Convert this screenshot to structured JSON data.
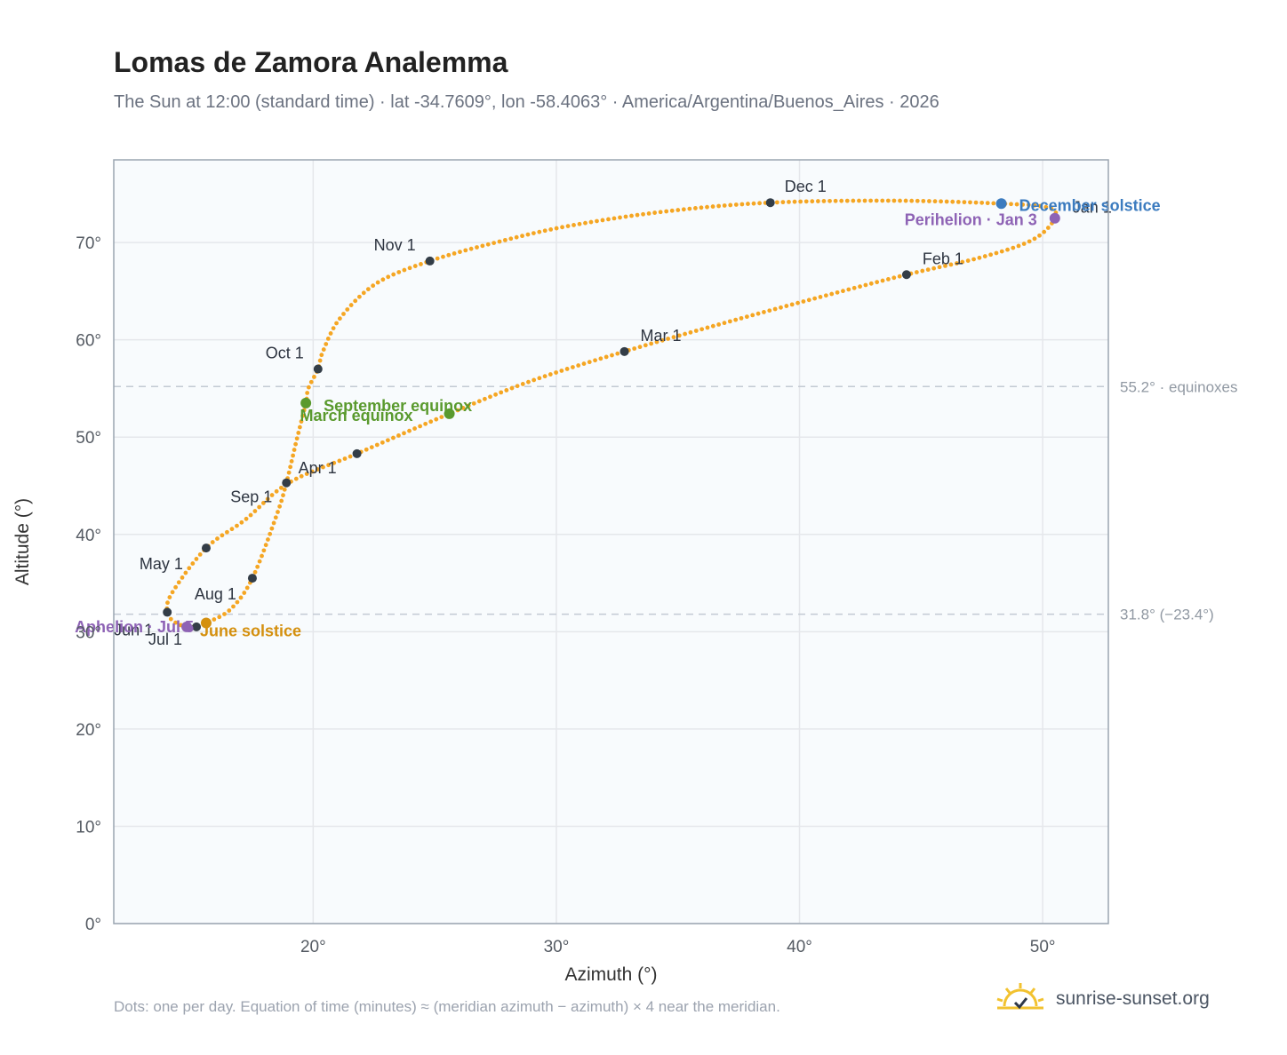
{
  "header": {
    "title": "Lomas de Zamora Analemma",
    "subtitle": "The Sun at 12:00 (standard time) · lat -34.7609°, lon -58.4063° · America/Argentina/Buenos_Aires · 2026"
  },
  "footer": {
    "note": "Dots: one per day. Equation of time (minutes) ≈ (meridian azimuth − azimuth) × 4 near the meridian.",
    "brand": "sunrise-sunset.org"
  },
  "colors": {
    "curve": "#f5a623",
    "month_dot": "#333d47",
    "equinox": "#5a9a2e",
    "june_solstice": "#d4900f",
    "december_solstice": "#3b7bbf",
    "apsis": "#8e63b5",
    "grid": "#e5e7eb",
    "frame": "#9aa5b1",
    "plot_bg": "#f8fbfd",
    "reference": "#c3cad3",
    "logo": "#f2c230"
  },
  "chart_data": {
    "type": "scatter",
    "xlabel": "Azimuth (°)",
    "ylabel": "Altitude (°)",
    "xlim": [
      11.8,
      52.7
    ],
    "ylim": [
      0,
      78.5
    ],
    "xticks": [
      20,
      30,
      40,
      50
    ],
    "yticks": [
      0,
      10,
      20,
      30,
      40,
      50,
      60,
      70
    ],
    "xtick_labels": [
      "20°",
      "30°",
      "40°",
      "50°"
    ],
    "ytick_labels": [
      "0°",
      "10°",
      "20°",
      "30°",
      "40°",
      "50°",
      "60°",
      "70°"
    ],
    "grid": true,
    "reference_lines": [
      {
        "y": 55.2,
        "label": "55.2° · equinoxes"
      },
      {
        "y": 31.8,
        "label": "31.8° (−23.4°)"
      }
    ],
    "months": [
      {
        "label": "Jan 1",
        "x": 50.5,
        "y": 72.5
      },
      {
        "label": "Feb 1",
        "x": 44.4,
        "y": 66.7
      },
      {
        "label": "Mar 1",
        "x": 32.8,
        "y": 58.8
      },
      {
        "label": "Apr 1",
        "x": 21.8,
        "y": 48.3
      },
      {
        "label": "May 1",
        "x": 15.6,
        "y": 38.6
      },
      {
        "label": "Jun 1",
        "x": 14.0,
        "y": 32.0
      },
      {
        "label": "Jul 1",
        "x": 15.2,
        "y": 30.5
      },
      {
        "label": "Aug 1",
        "x": 17.5,
        "y": 35.5
      },
      {
        "label": "Sep 1",
        "x": 18.9,
        "y": 45.3
      },
      {
        "label": "Oct 1",
        "x": 20.2,
        "y": 57.0
      },
      {
        "label": "Nov 1",
        "x": 24.8,
        "y": 68.1
      },
      {
        "label": "Dec 1",
        "x": 38.8,
        "y": 74.1
      }
    ],
    "events": [
      {
        "label": "March equinox",
        "x": 25.6,
        "y": 52.4,
        "kind": "equinox"
      },
      {
        "label": "September equinox",
        "x": 19.7,
        "y": 53.5,
        "kind": "equinox"
      },
      {
        "label": "June solstice",
        "x": 15.6,
        "y": 30.9,
        "kind": "june_solstice"
      },
      {
        "label": "December solstice",
        "x": 48.3,
        "y": 74.0,
        "kind": "december_solstice"
      },
      {
        "label": "Perihelion · Jan 3",
        "x": 50.5,
        "y": 72.5,
        "kind": "apsis"
      },
      {
        "label": "Aphelion · Jul 5",
        "x": 14.8,
        "y": 30.5,
        "kind": "apsis"
      }
    ],
    "path": [
      {
        "x": 50.5,
        "y": 72.5
      },
      {
        "x": 50.2,
        "y": 73.6
      },
      {
        "x": 48.3,
        "y": 74.0
      },
      {
        "x": 44.0,
        "y": 74.3
      },
      {
        "x": 38.8,
        "y": 74.1
      },
      {
        "x": 34.5,
        "y": 73.2
      },
      {
        "x": 30.5,
        "y": 71.7
      },
      {
        "x": 27.5,
        "y": 70.0
      },
      {
        "x": 24.8,
        "y": 68.1
      },
      {
        "x": 22.6,
        "y": 65.8
      },
      {
        "x": 21.1,
        "y": 62.2
      },
      {
        "x": 20.4,
        "y": 58.8
      },
      {
        "x": 20.2,
        "y": 57.0
      },
      {
        "x": 19.8,
        "y": 55.0
      },
      {
        "x": 19.7,
        "y": 53.5
      },
      {
        "x": 19.3,
        "y": 49.5
      },
      {
        "x": 18.9,
        "y": 45.3
      },
      {
        "x": 18.5,
        "y": 42.0
      },
      {
        "x": 17.5,
        "y": 35.5
      },
      {
        "x": 16.6,
        "y": 32.3
      },
      {
        "x": 15.6,
        "y": 30.9
      },
      {
        "x": 15.2,
        "y": 30.5
      },
      {
        "x": 14.8,
        "y": 30.5
      },
      {
        "x": 14.3,
        "y": 31.0
      },
      {
        "x": 14.0,
        "y": 32.0
      },
      {
        "x": 14.2,
        "y": 34.0
      },
      {
        "x": 15.6,
        "y": 38.6
      },
      {
        "x": 17.2,
        "y": 41.5
      },
      {
        "x": 19.0,
        "y": 45.3
      },
      {
        "x": 21.8,
        "y": 48.3
      },
      {
        "x": 25.6,
        "y": 52.4
      },
      {
        "x": 29.0,
        "y": 55.8
      },
      {
        "x": 32.8,
        "y": 58.8
      },
      {
        "x": 37.0,
        "y": 61.8
      },
      {
        "x": 41.0,
        "y": 64.5
      },
      {
        "x": 44.4,
        "y": 66.7
      },
      {
        "x": 47.5,
        "y": 68.5
      },
      {
        "x": 49.6,
        "y": 70.3
      },
      {
        "x": 50.5,
        "y": 72.5
      }
    ]
  }
}
